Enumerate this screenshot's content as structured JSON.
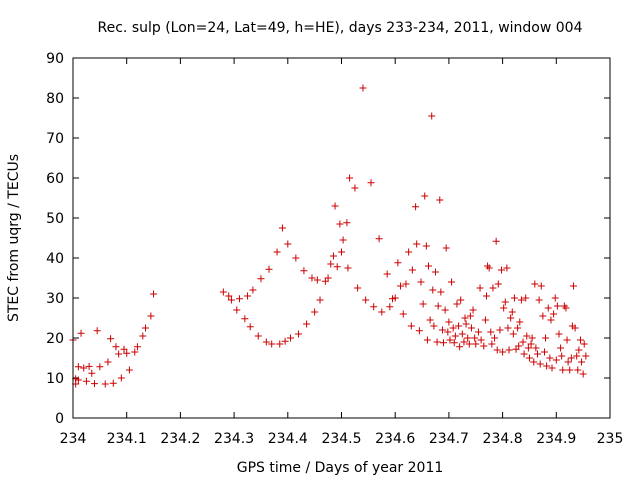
{
  "chart_data": {
    "type": "scatter",
    "title": "Rec. sulp (Lon=24, Lat=49, h=HE), days 233-234, 2011, window 004",
    "xlabel": "GPS time / Days of year 2011",
    "ylabel": "STEC from uqrg / TECUs",
    "xlim": [
      234,
      235
    ],
    "ylim": [
      0,
      90
    ],
    "x_ticks": [
      "234",
      "234.1",
      "234.2",
      "234.3",
      "234.4",
      "234.5",
      "234.6",
      "234.7",
      "234.8",
      "234.9",
      "235"
    ],
    "y_ticks": [
      "0",
      "10",
      "20",
      "30",
      "40",
      "50",
      "60",
      "70",
      "80",
      "90"
    ],
    "grid": false,
    "marker": "+",
    "color": "#cc0000",
    "points": [
      [
        234.0,
        19.5
      ],
      [
        234.005,
        9.8
      ],
      [
        234.01,
        12.8
      ],
      [
        234.015,
        21.2
      ],
      [
        234.02,
        12.5
      ],
      [
        234.03,
        12.9
      ],
      [
        234.035,
        11.2
      ],
      [
        234.04,
        8.6
      ],
      [
        234.045,
        21.8
      ],
      [
        234.05,
        12.8
      ],
      [
        234.06,
        8.5
      ],
      [
        234.065,
        14.0
      ],
      [
        234.07,
        19.8
      ],
      [
        234.075,
        8.7
      ],
      [
        234.08,
        17.8
      ],
      [
        234.085,
        16.0
      ],
      [
        234.09,
        10.0
      ],
      [
        234.095,
        17.2
      ],
      [
        234.1,
        16.2
      ],
      [
        234.105,
        12.0
      ],
      [
        234.115,
        16.5
      ],
      [
        234.12,
        17.8
      ],
      [
        234.13,
        20.5
      ],
      [
        234.135,
        22.5
      ],
      [
        234.145,
        25.5
      ],
      [
        234.15,
        31.0
      ],
      [
        234.005,
        8.5
      ],
      [
        234.01,
        9.5
      ],
      [
        234.025,
        9.2
      ],
      [
        234.28,
        31.5
      ],
      [
        234.29,
        30.5
      ],
      [
        234.295,
        29.5
      ],
      [
        234.305,
        27.0
      ],
      [
        234.31,
        29.8
      ],
      [
        234.32,
        24.8
      ],
      [
        234.325,
        30.5
      ],
      [
        234.33,
        22.8
      ],
      [
        234.335,
        32.0
      ],
      [
        234.345,
        20.5
      ],
      [
        234.35,
        34.8
      ],
      [
        234.36,
        19.0
      ],
      [
        234.365,
        37.2
      ],
      [
        234.37,
        18.5
      ],
      [
        234.38,
        41.5
      ],
      [
        234.385,
        18.5
      ],
      [
        234.39,
        47.5
      ],
      [
        234.395,
        19.2
      ],
      [
        234.4,
        43.5
      ],
      [
        234.405,
        20.0
      ],
      [
        234.415,
        40.0
      ],
      [
        234.42,
        21.0
      ],
      [
        234.43,
        36.8
      ],
      [
        234.435,
        23.5
      ],
      [
        234.445,
        35.0
      ],
      [
        234.45,
        26.5
      ],
      [
        234.455,
        34.5
      ],
      [
        234.46,
        29.5
      ],
      [
        234.47,
        34.2
      ],
      [
        234.475,
        35.0
      ],
      [
        234.48,
        38.5
      ],
      [
        234.485,
        40.5
      ],
      [
        234.488,
        53.0
      ],
      [
        234.492,
        37.8
      ],
      [
        234.497,
        48.5
      ],
      [
        234.5,
        41.5
      ],
      [
        234.503,
        44.5
      ],
      [
        234.51,
        48.8
      ],
      [
        234.512,
        37.5
      ],
      [
        234.515,
        60.0
      ],
      [
        234.525,
        57.5
      ],
      [
        234.53,
        32.5
      ],
      [
        234.54,
        82.5
      ],
      [
        234.545,
        29.5
      ],
      [
        234.555,
        58.8
      ],
      [
        234.56,
        27.8
      ],
      [
        234.57,
        44.8
      ],
      [
        234.575,
        26.5
      ],
      [
        234.585,
        36.0
      ],
      [
        234.59,
        27.8
      ],
      [
        234.595,
        29.8
      ],
      [
        234.6,
        30.0
      ],
      [
        234.605,
        38.8
      ],
      [
        234.61,
        33.0
      ],
      [
        234.615,
        26.0
      ],
      [
        234.62,
        33.5
      ],
      [
        234.625,
        41.5
      ],
      [
        234.63,
        23.0
      ],
      [
        234.632,
        37.0
      ],
      [
        234.638,
        52.8
      ],
      [
        234.64,
        43.5
      ],
      [
        234.645,
        21.8
      ],
      [
        234.648,
        34.0
      ],
      [
        234.652,
        28.5
      ],
      [
        234.655,
        55.5
      ],
      [
        234.658,
        43.0
      ],
      [
        234.66,
        19.5
      ],
      [
        234.662,
        38.0
      ],
      [
        234.665,
        24.5
      ],
      [
        234.668,
        75.5
      ],
      [
        234.67,
        32.0
      ],
      [
        234.672,
        23.0
      ],
      [
        234.675,
        36.5
      ],
      [
        234.678,
        19.0
      ],
      [
        234.68,
        28.0
      ],
      [
        234.683,
        54.5
      ],
      [
        234.685,
        31.5
      ],
      [
        234.688,
        22.0
      ],
      [
        234.69,
        18.8
      ],
      [
        234.693,
        27.0
      ],
      [
        234.695,
        42.5
      ],
      [
        234.698,
        21.5
      ],
      [
        234.7,
        24.0
      ],
      [
        234.702,
        19.5
      ],
      [
        234.705,
        34.0
      ],
      [
        234.708,
        22.5
      ],
      [
        234.71,
        18.8
      ],
      [
        234.712,
        20.5
      ],
      [
        234.715,
        28.5
      ],
      [
        234.718,
        23.0
      ],
      [
        234.72,
        17.8
      ],
      [
        234.722,
        29.5
      ],
      [
        234.725,
        21.0
      ],
      [
        234.728,
        19.0
      ],
      [
        234.73,
        25.0
      ],
      [
        234.732,
        23.5
      ],
      [
        234.735,
        20.0
      ],
      [
        234.738,
        18.5
      ],
      [
        234.74,
        25.5
      ],
      [
        234.742,
        22.5
      ],
      [
        234.745,
        27.0
      ],
      [
        234.748,
        20.0
      ],
      [
        234.75,
        18.5
      ],
      [
        234.755,
        21.5
      ],
      [
        234.758,
        32.5
      ],
      [
        234.76,
        19.5
      ],
      [
        234.765,
        18.0
      ],
      [
        234.768,
        24.5
      ],
      [
        234.77,
        30.5
      ],
      [
        234.772,
        38.0
      ],
      [
        234.775,
        37.5
      ],
      [
        234.778,
        21.5
      ],
      [
        234.78,
        18.5
      ],
      [
        234.782,
        32.5
      ],
      [
        234.785,
        20.0
      ],
      [
        234.788,
        44.2
      ],
      [
        234.79,
        17.0
      ],
      [
        234.792,
        33.5
      ],
      [
        234.795,
        22.0
      ],
      [
        234.798,
        37.0
      ],
      [
        234.8,
        16.5
      ],
      [
        234.802,
        27.5
      ],
      [
        234.805,
        29.0
      ],
      [
        234.808,
        37.5
      ],
      [
        234.81,
        22.5
      ],
      [
        234.812,
        17.0
      ],
      [
        234.815,
        25.0
      ],
      [
        234.818,
        26.5
      ],
      [
        234.82,
        21.0
      ],
      [
        234.822,
        30.0
      ],
      [
        234.825,
        17.2
      ],
      [
        234.828,
        22.5
      ],
      [
        234.83,
        18.0
      ],
      [
        234.832,
        24.0
      ],
      [
        234.835,
        29.5
      ],
      [
        234.838,
        19.0
      ],
      [
        234.84,
        16.0
      ],
      [
        234.843,
        30.0
      ],
      [
        234.845,
        20.5
      ],
      [
        234.848,
        17.5
      ],
      [
        234.85,
        15.0
      ],
      [
        234.853,
        18.5
      ],
      [
        234.855,
        20.0
      ],
      [
        234.858,
        14.0
      ],
      [
        234.86,
        33.5
      ],
      [
        234.862,
        17.5
      ],
      [
        234.865,
        16.0
      ],
      [
        234.868,
        29.5
      ],
      [
        234.87,
        13.5
      ],
      [
        234.872,
        33.0
      ],
      [
        234.875,
        25.5
      ],
      [
        234.878,
        16.5
      ],
      [
        234.88,
        20.0
      ],
      [
        234.882,
        13.0
      ],
      [
        234.885,
        27.5
      ],
      [
        234.888,
        15.0
      ],
      [
        234.89,
        24.5
      ],
      [
        234.892,
        12.5
      ],
      [
        234.895,
        26.0
      ],
      [
        234.898,
        30.0
      ],
      [
        234.9,
        14.5
      ],
      [
        234.902,
        28.0
      ],
      [
        234.905,
        21.0
      ],
      [
        234.908,
        17.5
      ],
      [
        234.91,
        15.5
      ],
      [
        234.912,
        12.0
      ],
      [
        234.915,
        28.0
      ],
      [
        234.918,
        27.5
      ],
      [
        234.92,
        19.5
      ],
      [
        234.922,
        14.0
      ],
      [
        234.925,
        12.0
      ],
      [
        234.928,
        15.0
      ],
      [
        234.93,
        23.0
      ],
      [
        234.932,
        33.0
      ],
      [
        234.935,
        22.5
      ],
      [
        234.938,
        15.5
      ],
      [
        234.94,
        12.0
      ],
      [
        234.942,
        17.0
      ],
      [
        234.945,
        19.5
      ],
      [
        234.947,
        14.0
      ],
      [
        234.95,
        11.0
      ],
      [
        234.952,
        18.5
      ],
      [
        234.955,
        15.5
      ]
    ]
  }
}
